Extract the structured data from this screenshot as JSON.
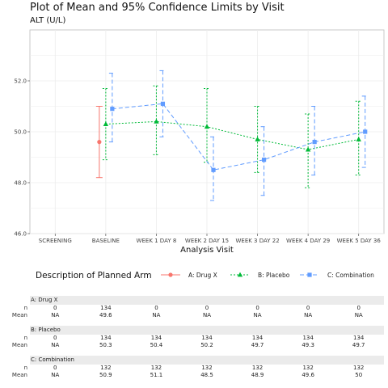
{
  "title": "Plot of Mean and 95% Confidence Limits by Visit",
  "subtitle": "ALT (U/L)",
  "chart_data": {
    "type": "line",
    "xlabel": "Analysis Visit",
    "ylabel": "",
    "categories": [
      "SCREENING",
      "BASELINE",
      "WEEK 1 DAY 8",
      "WEEK 2 DAY 15",
      "WEEK 3 DAY 22",
      "WEEK 4 DAY 29",
      "WEEK 5 DAY 36"
    ],
    "ylim": [
      46.0,
      54.0
    ],
    "yticks": [
      "46.0",
      "48.0",
      "50.0",
      "52.0"
    ],
    "grid": true,
    "legend_title": "Description of Planned Arm",
    "legend_position": "bottom",
    "series": [
      {
        "name": "A: Drug X",
        "color": "#f8766d",
        "marker": "circle",
        "dash": "solid",
        "mean": [
          null,
          49.6,
          null,
          null,
          null,
          null,
          null
        ],
        "lower": [
          null,
          48.2,
          null,
          null,
          null,
          null,
          null
        ],
        "upper": [
          null,
          51.0,
          null,
          null,
          null,
          null,
          null
        ]
      },
      {
        "name": "B: Placebo",
        "color": "#00ba38",
        "marker": "triangle",
        "dash": "dotted",
        "mean": [
          null,
          50.3,
          50.4,
          50.2,
          49.7,
          49.3,
          49.7
        ],
        "lower": [
          null,
          48.9,
          49.1,
          48.8,
          48.4,
          47.8,
          48.3
        ],
        "upper": [
          null,
          51.7,
          51.8,
          51.7,
          51.0,
          50.7,
          51.2
        ]
      },
      {
        "name": "C: Combination",
        "color": "#619cff",
        "marker": "square",
        "dash": "dashed",
        "mean": [
          null,
          50.9,
          51.1,
          48.5,
          48.9,
          49.6,
          50.0
        ],
        "lower": [
          null,
          49.6,
          49.8,
          47.3,
          47.5,
          48.3,
          48.6
        ],
        "upper": [
          null,
          52.3,
          52.4,
          49.8,
          50.2,
          51.0,
          51.4
        ]
      }
    ]
  },
  "table": [
    {
      "arm": "A: Drug X",
      "n": [
        "0",
        "134",
        "0",
        "0",
        "0",
        "0",
        "0"
      ],
      "mean": [
        "NA",
        "49.6",
        "NA",
        "NA",
        "NA",
        "NA",
        "NA"
      ]
    },
    {
      "arm": "B: Placebo",
      "n": [
        "0",
        "134",
        "134",
        "134",
        "134",
        "134",
        "134"
      ],
      "mean": [
        "NA",
        "50.3",
        "50.4",
        "50.2",
        "49.7",
        "49.3",
        "49.7"
      ]
    },
    {
      "arm": "C: Combination",
      "n": [
        "0",
        "132",
        "132",
        "132",
        "132",
        "132",
        "132"
      ],
      "mean": [
        "NA",
        "50.9",
        "51.1",
        "48.5",
        "48.9",
        "49.6",
        "50"
      ]
    }
  ],
  "row_labels": {
    "n": "n",
    "mean": "Mean"
  }
}
